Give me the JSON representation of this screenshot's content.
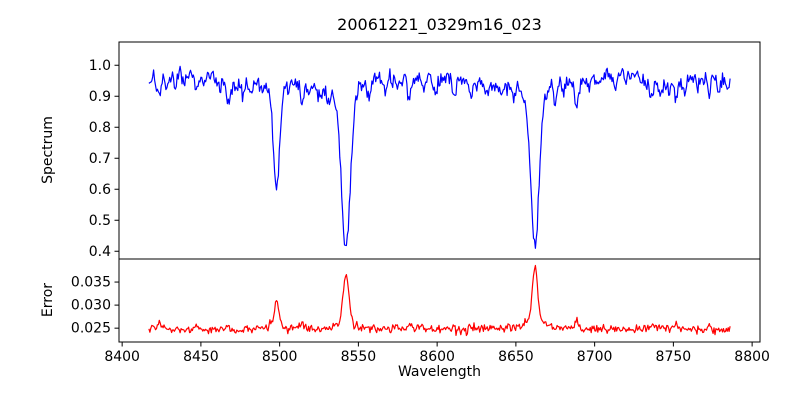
{
  "figure": {
    "background": "#ffffff",
    "text_color": "#000000",
    "frame_color": "#000000"
  },
  "chart_data": {
    "type": "line",
    "title": "20061221_0329m16_023",
    "xlabel": "Wavelength",
    "grid": false,
    "legend": false,
    "xlim": [
      8398,
      8805
    ],
    "xticks": [
      8400,
      8450,
      8500,
      8550,
      8600,
      8650,
      8700,
      8750,
      8800
    ],
    "xtick_labels": [
      "8400",
      "8450",
      "8500",
      "8550",
      "8600",
      "8650",
      "8700",
      "8750",
      "8800"
    ],
    "x_start": 8417,
    "x_end": 8786,
    "x_step": 0.6,
    "panels": [
      {
        "name": "spectrum",
        "ylabel": "Spectrum",
        "color": "#0000ff",
        "ylim": [
          0.375,
          1.075
        ],
        "yticks": [
          0.4,
          0.5,
          0.6,
          0.7,
          0.8,
          0.9,
          1.0
        ],
        "ytick_labels": [
          "0.4",
          "0.5",
          "0.6",
          "0.7",
          "0.8",
          "0.9",
          "1.0"
        ],
        "baseline": 0.958,
        "continuum_waves": [
          {
            "amp": 0.01,
            "period": 55,
            "phase": 8430
          },
          {
            "amp": 0.008,
            "period": 130,
            "phase": 8400
          }
        ],
        "noise_std": 0.013,
        "seed": 20061221,
        "features": [
          {
            "c": 8498.0,
            "a": -0.365,
            "s": 1.8,
            "w": 0.25,
            "g": 4
          },
          {
            "c": 8542.1,
            "a": -0.555,
            "s": 2.6,
            "w": 0.28,
            "g": 6
          },
          {
            "c": 8662.1,
            "a": -0.55,
            "s": 2.4,
            "w": 0.28,
            "g": 6
          },
          {
            "c": 8423.5,
            "a": -0.045,
            "s": 1.0
          },
          {
            "c": 8428.0,
            "a": -0.03,
            "s": 0.9
          },
          {
            "c": 8434.0,
            "a": -0.035,
            "s": 0.9
          },
          {
            "c": 8439.0,
            "a": -0.03,
            "s": 0.9
          },
          {
            "c": 8447.0,
            "a": -0.05,
            "s": 1.0
          },
          {
            "c": 8452.0,
            "a": -0.035,
            "s": 0.9
          },
          {
            "c": 8462.0,
            "a": -0.03,
            "s": 0.9
          },
          {
            "c": 8467.5,
            "a": -0.075,
            "s": 1.1
          },
          {
            "c": 8473.0,
            "a": -0.03,
            "s": 0.9
          },
          {
            "c": 8476.5,
            "a": -0.045,
            "s": 0.9
          },
          {
            "c": 8482.0,
            "a": -0.03,
            "s": 0.9
          },
          {
            "c": 8488.0,
            "a": -0.025,
            "s": 0.9
          },
          {
            "c": 8514.1,
            "a": -0.065,
            "s": 1.1
          },
          {
            "c": 8519.0,
            "a": -0.035,
            "s": 0.9
          },
          {
            "c": 8526.0,
            "a": -0.03,
            "s": 0.9
          },
          {
            "c": 8531.0,
            "a": -0.025,
            "s": 0.9
          },
          {
            "c": 8556.8,
            "a": -0.055,
            "s": 1.0
          },
          {
            "c": 8567.0,
            "a": -0.045,
            "s": 1.0
          },
          {
            "c": 8575.0,
            "a": -0.03,
            "s": 0.9
          },
          {
            "c": 8582.3,
            "a": -0.06,
            "s": 1.0
          },
          {
            "c": 8592.0,
            "a": -0.03,
            "s": 0.9
          },
          {
            "c": 8598.8,
            "a": -0.045,
            "s": 1.0
          },
          {
            "c": 8611.0,
            "a": -0.05,
            "s": 1.0
          },
          {
            "c": 8621.5,
            "a": -0.055,
            "s": 1.0
          },
          {
            "c": 8632.0,
            "a": -0.03,
            "s": 0.9
          },
          {
            "c": 8641.0,
            "a": -0.03,
            "s": 0.9
          },
          {
            "c": 8648.5,
            "a": -0.04,
            "s": 0.9
          },
          {
            "c": 8674.7,
            "a": -0.05,
            "s": 1.0
          },
          {
            "c": 8680.0,
            "a": -0.03,
            "s": 0.9
          },
          {
            "c": 8688.6,
            "a": -0.08,
            "s": 1.2
          },
          {
            "c": 8696.0,
            "a": -0.03,
            "s": 0.9
          },
          {
            "c": 8702.0,
            "a": -0.025,
            "s": 0.9
          },
          {
            "c": 8713.0,
            "a": -0.04,
            "s": 0.9
          },
          {
            "c": 8720.0,
            "a": -0.03,
            "s": 0.9
          },
          {
            "c": 8729.0,
            "a": -0.03,
            "s": 0.9
          },
          {
            "c": 8736.0,
            "a": -0.06,
            "s": 1.0
          },
          {
            "c": 8742.0,
            "a": -0.035,
            "s": 0.9
          },
          {
            "c": 8747.0,
            "a": -0.03,
            "s": 0.9
          },
          {
            "c": 8751.5,
            "a": -0.05,
            "s": 1.0
          },
          {
            "c": 8757.0,
            "a": -0.04,
            "s": 0.9
          },
          {
            "c": 8765.0,
            "a": -0.035,
            "s": 0.9
          },
          {
            "c": 8772.9,
            "a": -0.06,
            "s": 1.0
          },
          {
            "c": 8779.0,
            "a": -0.045,
            "s": 1.0
          },
          {
            "c": 8784.0,
            "a": -0.04,
            "s": 0.9
          }
        ]
      },
      {
        "name": "error",
        "ylabel": "Error",
        "color": "#ff0000",
        "ylim": [
          0.022,
          0.04
        ],
        "yticks": [
          0.025,
          0.03,
          0.035
        ],
        "ytick_labels": [
          "0.025",
          "0.030",
          "0.035"
        ],
        "baseline": 0.0248,
        "continuum_waves": [
          {
            "amp": 0.0002,
            "period": 80,
            "phase": 8400
          }
        ],
        "noise_std": 0.00045,
        "seed": 329,
        "features": [
          {
            "c": 8498.0,
            "a": 0.0062,
            "s": 1.4,
            "w": 0.2,
            "g": 3
          },
          {
            "c": 8542.1,
            "a": 0.0127,
            "s": 1.7,
            "w": 0.22,
            "g": 4
          },
          {
            "c": 8662.1,
            "a": 0.0138,
            "s": 1.5,
            "w": 0.22,
            "g": 4
          },
          {
            "c": 8423.5,
            "a": 0.0012,
            "s": 1.2
          },
          {
            "c": 8447.0,
            "a": 0.0008,
            "s": 1.0
          },
          {
            "c": 8467.5,
            "a": 0.0009,
            "s": 1.0
          },
          {
            "c": 8514.1,
            "a": 0.0012,
            "s": 1.0
          },
          {
            "c": 8582.3,
            "a": 0.0009,
            "s": 1.0
          },
          {
            "c": 8611.0,
            "a": 0.0008,
            "s": 1.0
          },
          {
            "c": 8621.5,
            "a": 0.0008,
            "s": 1.0
          },
          {
            "c": 8688.6,
            "a": 0.0018,
            "s": 1.2
          },
          {
            "c": 8736.0,
            "a": 0.0012,
            "s": 1.0
          },
          {
            "c": 8751.5,
            "a": 0.001,
            "s": 1.0
          },
          {
            "c": 8772.9,
            "a": 0.0012,
            "s": 1.0
          }
        ]
      }
    ]
  }
}
